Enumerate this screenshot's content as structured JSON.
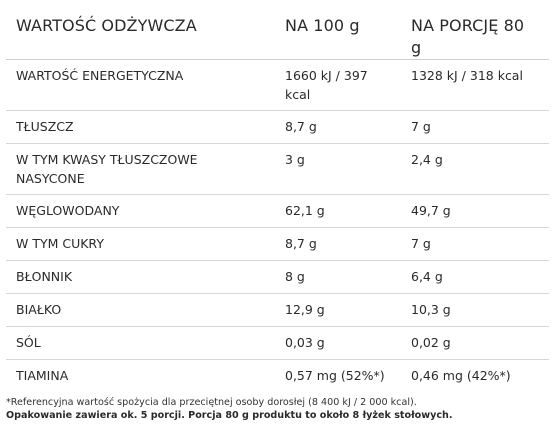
{
  "table": {
    "headers": [
      "WARTOŚĆ ODŻYWCZA",
      "NA 100 g",
      "NA PORCJĘ 80 g"
    ],
    "rows": [
      {
        "name": "WARTOŚĆ ENERGETYCZNA",
        "per100": "1660 kJ / 397 kcal",
        "perPortion": "1328 kJ / 318 kcal"
      },
      {
        "name": "TŁUSZCZ",
        "per100": "8,7 g",
        "perPortion": "7 g"
      },
      {
        "name": "W TYM KWASY TŁUSZCZOWE NASYCONE",
        "per100": "3 g",
        "perPortion": "2,4 g"
      },
      {
        "name": "WĘGLOWODANY",
        "per100": "62,1 g",
        "perPortion": "49,7 g"
      },
      {
        "name": "W TYM CUKRY",
        "per100": "8,7 g",
        "perPortion": "7 g"
      },
      {
        "name": "BŁONNIK",
        "per100": "8 g",
        "perPortion": "6,4 g"
      },
      {
        "name": "BIAŁKO",
        "per100": "12,9 g",
        "perPortion": "10,3 g"
      },
      {
        "name": "SÓL",
        "per100": "0,03 g",
        "perPortion": "0,02 g"
      },
      {
        "name": "TIAMINA",
        "per100": "0,57 mg (52%*)",
        "perPortion": "0,46 mg (42%*)"
      }
    ]
  },
  "footnotes": {
    "reference": "*Referencyjna wartość spożycia dla przeciętnej osoby dorosłej (8 400 kJ / 2 000 kcal).",
    "packaging": "Opakowanie zawiera ok. 5 porcji. Porcja 80 g produktu to około 8 łyżek stołowych."
  }
}
